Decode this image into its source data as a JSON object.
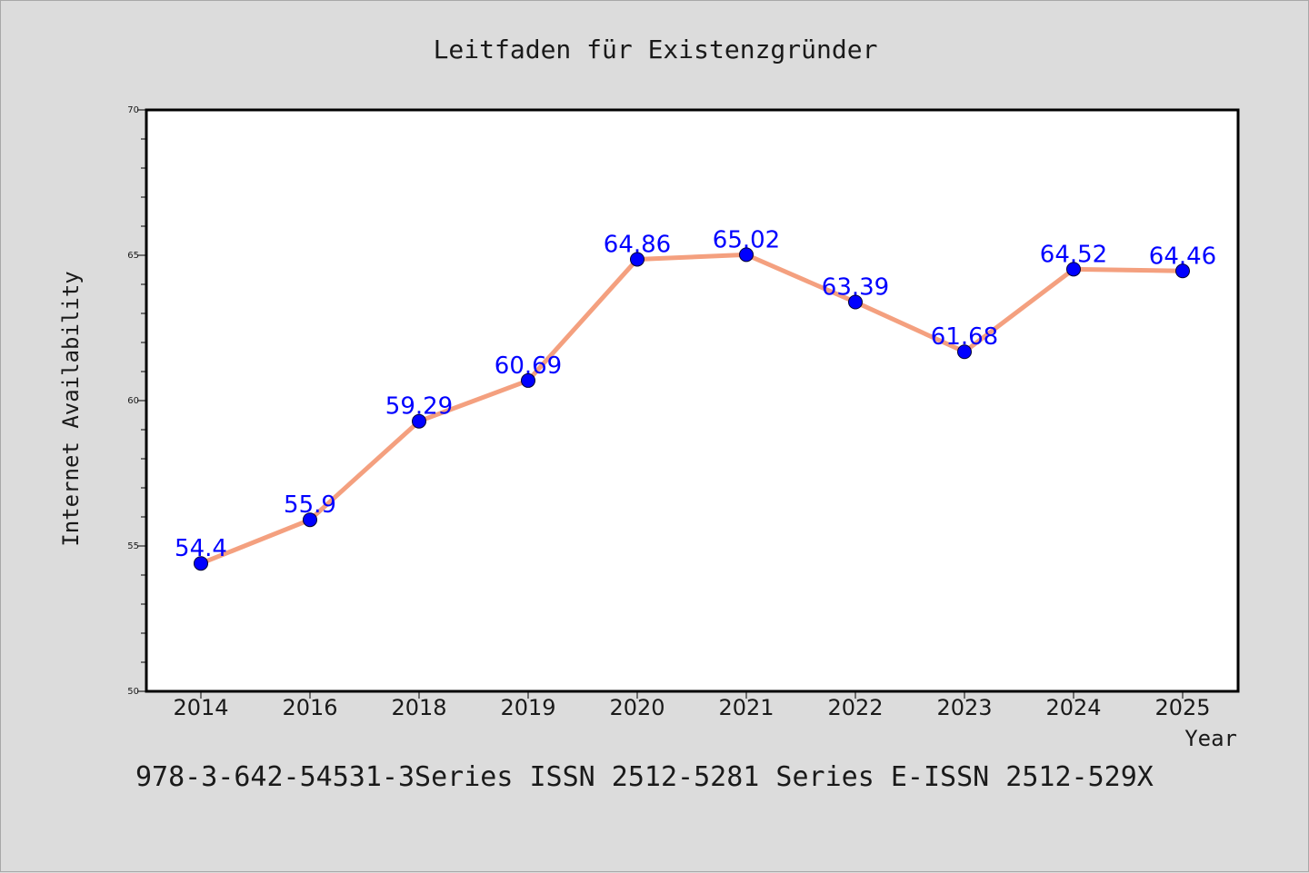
{
  "chart_data": {
    "type": "line",
    "title": "Leitfaden für Existenzgründer",
    "xlabel": "Year",
    "ylabel": "Internet Availability",
    "categories": [
      "2014",
      "2016",
      "2018",
      "2019",
      "2020",
      "2021",
      "2022",
      "2023",
      "2024",
      "2025"
    ],
    "series": [
      {
        "values": [
          54.4,
          55.9,
          59.29,
          60.69,
          64.86,
          65.02,
          63.39,
          61.68,
          64.52,
          64.46
        ],
        "labels": [
          "54.4",
          "55.9",
          "59.29",
          "60.69",
          "64.86",
          "65.02",
          "63.39",
          "61.68",
          "64.52",
          "64.46"
        ],
        "line_color": "#f4a07f",
        "marker_color": "#0000ff"
      }
    ],
    "ylim": [
      50,
      70
    ],
    "y_ticks": [
      "50",
      "55",
      "60",
      "65",
      "70"
    ],
    "grid": false
  },
  "footer": {
    "text": "978-3-642-54531-3Series ISSN 2512-5281 Series E-ISSN 2512-529X"
  }
}
